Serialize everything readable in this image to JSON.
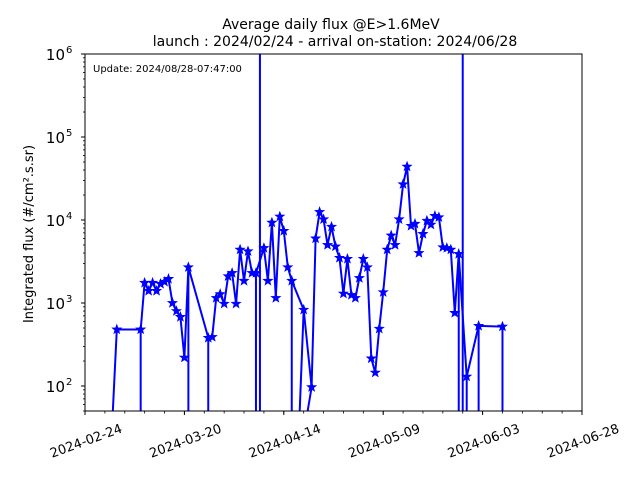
{
  "chart_data": {
    "type": "line",
    "title_line1": "Average daily flux @E>1.6MeV",
    "title_line2": "launch : 2024/02/24 - arrival on-station: 2024/06/28",
    "annotation": "Update: 2024/08/28-07:47:00",
    "ylabel": "Integrated flux (#/cm².s.sr)",
    "yscale": "log",
    "ylim": [
      50,
      1000000
    ],
    "xlim": [
      "2024-02-24",
      "2024-06-28"
    ],
    "xticks": [
      "2024-02-24",
      "2024-03-20",
      "2024-04-14",
      "2024-05-09",
      "2024-06-03",
      "2024-06-28"
    ],
    "yticks": [
      {
        "base": "10",
        "exp": "2",
        "value": 100
      },
      {
        "base": "10",
        "exp": "3",
        "value": 1000
      },
      {
        "base": "10",
        "exp": "4",
        "value": 10000
      },
      {
        "base": "10",
        "exp": "5",
        "value": 100000
      },
      {
        "base": "10",
        "exp": "6",
        "value": 1000000
      }
    ],
    "grid": false,
    "series": [
      {
        "color": "#0000ff",
        "marker": "star",
        "points": [
          [
            "2024-03-03",
            480
          ],
          [
            "2024-03-09",
            480
          ],
          [
            "2024-03-10",
            1750
          ],
          [
            "2024-03-11",
            1400
          ],
          [
            "2024-03-12",
            1750
          ],
          [
            "2024-03-13",
            1400
          ],
          [
            "2024-03-14",
            1700
          ],
          [
            "2024-03-15",
            1800
          ],
          [
            "2024-03-16",
            1950
          ],
          [
            "2024-03-17",
            1000
          ],
          [
            "2024-03-18",
            800
          ],
          [
            "2024-03-19",
            680
          ],
          [
            "2024-03-20",
            220
          ],
          [
            "2024-03-21",
            2700
          ],
          [
            "2024-03-26",
            380
          ],
          [
            "2024-03-27",
            390
          ],
          [
            "2024-03-28",
            1150
          ],
          [
            "2024-03-29",
            1280
          ],
          [
            "2024-03-30",
            980
          ],
          [
            "2024-03-31",
            2100
          ],
          [
            "2024-04-01",
            2300
          ],
          [
            "2024-04-02",
            980
          ],
          [
            "2024-04-03",
            4400
          ],
          [
            "2024-04-04",
            1850
          ],
          [
            "2024-04-05",
            4200
          ],
          [
            "2024-04-06",
            2300
          ],
          [
            "2024-04-07",
            2300
          ],
          [
            "2024-04-09",
            4600
          ],
          [
            "2024-04-10",
            1850
          ],
          [
            "2024-04-11",
            9300
          ],
          [
            "2024-04-12",
            1150
          ],
          [
            "2024-04-13",
            11000
          ],
          [
            "2024-04-14",
            7400
          ],
          [
            "2024-04-15",
            2700
          ],
          [
            "2024-04-16",
            1850
          ],
          [
            "2024-04-19",
            830
          ],
          [
            "2024-04-21",
            97
          ],
          [
            "2024-04-22",
            6000
          ],
          [
            "2024-04-23",
            12500
          ],
          [
            "2024-04-24",
            10200
          ],
          [
            "2024-04-25",
            5000
          ],
          [
            "2024-04-26",
            8300
          ],
          [
            "2024-04-27",
            4800
          ],
          [
            "2024-04-28",
            3500
          ],
          [
            "2024-04-29",
            1300
          ],
          [
            "2024-04-30",
            3400
          ],
          [
            "2024-05-01",
            1250
          ],
          [
            "2024-05-02",
            1150
          ],
          [
            "2024-05-03",
            2000
          ],
          [
            "2024-05-04",
            3400
          ],
          [
            "2024-05-05",
            2700
          ],
          [
            "2024-05-06",
            215
          ],
          [
            "2024-05-07",
            145
          ],
          [
            "2024-05-08",
            490
          ],
          [
            "2024-05-09",
            1350
          ],
          [
            "2024-05-10",
            4400
          ],
          [
            "2024-05-11",
            6500
          ],
          [
            "2024-05-12",
            5000
          ],
          [
            "2024-05-13",
            10200
          ],
          [
            "2024-05-14",
            27000
          ],
          [
            "2024-05-15",
            44000
          ],
          [
            "2024-05-16",
            8500
          ],
          [
            "2024-05-17",
            9000
          ],
          [
            "2024-05-18",
            4000
          ],
          [
            "2024-05-19",
            6800
          ],
          [
            "2024-05-20",
            9800
          ],
          [
            "2024-05-21",
            8800
          ],
          [
            "2024-05-22",
            11200
          ],
          [
            "2024-05-23",
            10800
          ],
          [
            "2024-05-24",
            4700
          ],
          [
            "2024-05-25",
            4600
          ],
          [
            "2024-05-26",
            4400
          ],
          [
            "2024-05-27",
            760
          ],
          [
            "2024-05-28",
            3900
          ],
          [
            "2024-05-30",
            130
          ],
          [
            "2024-06-02",
            530
          ],
          [
            "2024-06-08",
            520
          ]
        ],
        "drops": [
          [
            "2024-03-02",
            "2024-03-03"
          ],
          [
            "2024-03-09",
            "2024-03-09"
          ],
          [
            "2024-03-21",
            "2024-03-21"
          ],
          [
            "2024-03-26",
            "2024-03-26"
          ],
          [
            "2024-04-07",
            "2024-04-07"
          ],
          [
            "2024-04-08",
            "2024-04-08"
          ],
          [
            "2024-04-16",
            "2024-04-16"
          ],
          [
            "2024-04-18",
            "2024-04-19"
          ],
          [
            "2024-04-20",
            "2024-04-21"
          ],
          [
            "2024-05-28",
            "2024-05-28"
          ],
          [
            "2024-05-29",
            "2024-05-29"
          ],
          [
            "2024-05-30",
            "2024-05-30"
          ],
          [
            "2024-06-02",
            "2024-06-02"
          ],
          [
            "2024-06-08",
            "2024-06-08"
          ]
        ]
      }
    ]
  }
}
